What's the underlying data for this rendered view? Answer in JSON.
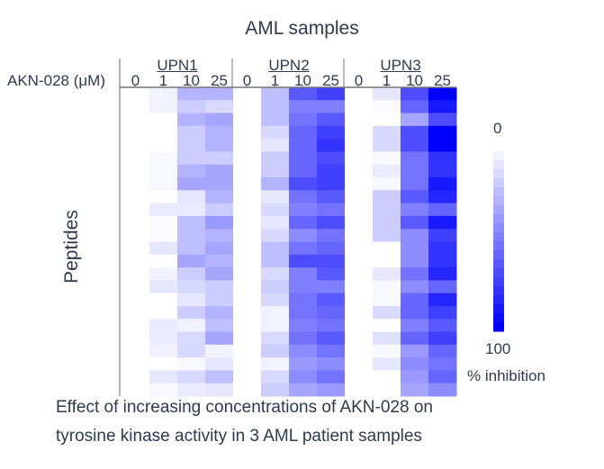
{
  "chart_data": {
    "type": "heatmap",
    "title": "AML samples",
    "ylabel": "Peptides",
    "dose_label": "AKN-028 (μM)",
    "groups": [
      "UPN1",
      "UPN2",
      "UPN3"
    ],
    "doses": [
      "0",
      "1",
      "10",
      "25"
    ],
    "color_min": "#ffffff",
    "color_max": "#0000ff",
    "colorbar": {
      "min_label": "0",
      "max_label": "100",
      "label": "% inhibition",
      "range": [
        0,
        100
      ]
    },
    "caption_lines": [
      "Effect of increasing concentrations of AKN-028 on",
      "tyrosine kinase activity in 3 AML patient samples"
    ],
    "rows_note_values_are_percent_inhibition": true,
    "values": [
      [
        0,
        5,
        30,
        30,
        0,
        25,
        65,
        75,
        0,
        10,
        70,
        100
      ],
      [
        0,
        5,
        20,
        15,
        0,
        25,
        50,
        50,
        0,
        2,
        60,
        90
      ],
      [
        0,
        0,
        30,
        35,
        0,
        25,
        55,
        65,
        0,
        0,
        35,
        70
      ],
      [
        0,
        0,
        20,
        30,
        0,
        15,
        60,
        75,
        0,
        15,
        70,
        100
      ],
      [
        0,
        0,
        20,
        30,
        0,
        10,
        60,
        80,
        0,
        15,
        70,
        100
      ],
      [
        0,
        3,
        20,
        20,
        0,
        20,
        60,
        70,
        0,
        3,
        55,
        80
      ],
      [
        0,
        3,
        30,
        35,
        0,
        20,
        60,
        75,
        0,
        8,
        55,
        80
      ],
      [
        0,
        3,
        35,
        35,
        0,
        30,
        70,
        75,
        0,
        3,
        55,
        90
      ],
      [
        0,
        0,
        10,
        30,
        0,
        10,
        55,
        65,
        0,
        20,
        65,
        85
      ],
      [
        0,
        8,
        8,
        20,
        0,
        15,
        50,
        55,
        0,
        20,
        50,
        60
      ],
      [
        0,
        2,
        25,
        40,
        0,
        10,
        60,
        70,
        0,
        20,
        65,
        90
      ],
      [
        0,
        2,
        25,
        30,
        0,
        15,
        45,
        55,
        0,
        20,
        45,
        75
      ],
      [
        0,
        10,
        25,
        35,
        0,
        25,
        55,
        60,
        0,
        0,
        45,
        80
      ],
      [
        0,
        0,
        35,
        30,
        0,
        25,
        70,
        70,
        0,
        0,
        45,
        80
      ],
      [
        0,
        5,
        20,
        35,
        0,
        15,
        50,
        65,
        0,
        10,
        55,
        85
      ],
      [
        0,
        10,
        15,
        20,
        0,
        20,
        50,
        50,
        0,
        3,
        45,
        60
      ],
      [
        0,
        0,
        10,
        20,
        0,
        15,
        55,
        65,
        0,
        3,
        60,
        85
      ],
      [
        0,
        0,
        20,
        30,
        0,
        5,
        55,
        60,
        0,
        15,
        60,
        75
      ],
      [
        0,
        8,
        5,
        25,
        0,
        5,
        50,
        55,
        0,
        0,
        50,
        65
      ],
      [
        0,
        8,
        15,
        35,
        0,
        15,
        55,
        65,
        0,
        12,
        60,
        75
      ],
      [
        0,
        5,
        15,
        5,
        0,
        20,
        45,
        55,
        0,
        3,
        40,
        60
      ],
      [
        0,
        0,
        3,
        10,
        0,
        5,
        40,
        45,
        0,
        10,
        45,
        55
      ],
      [
        0,
        10,
        15,
        25,
        0,
        15,
        45,
        55,
        0,
        0,
        40,
        60
      ],
      [
        0,
        3,
        8,
        10,
        0,
        20,
        35,
        40,
        0,
        0,
        35,
        45
      ]
    ]
  }
}
